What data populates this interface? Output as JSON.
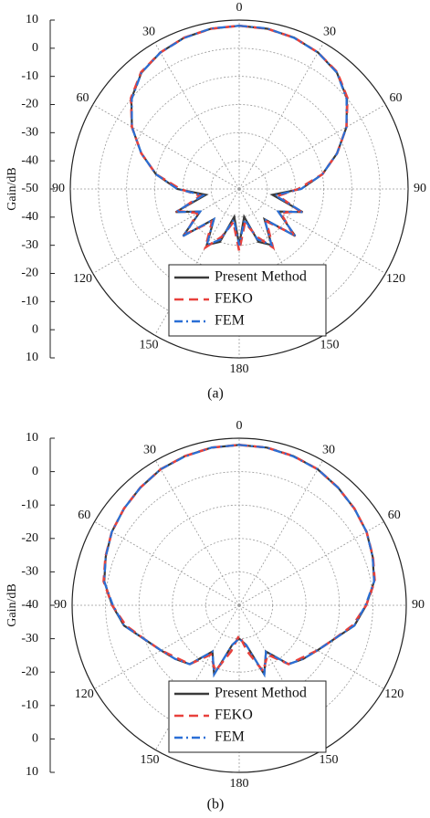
{
  "chart_data": [
    {
      "type": "polar",
      "caption": "(a)",
      "radial_label": "Gain/dB",
      "rlim": [
        -50,
        10
      ],
      "rticks": [
        -50,
        -40,
        -30,
        -20,
        -10,
        0,
        10
      ],
      "angle_ticks": [
        0,
        30,
        60,
        90,
        120,
        150,
        180
      ],
      "grid": true,
      "legend": "lower center",
      "theta": [
        0,
        10,
        20,
        30,
        40,
        50,
        60,
        70,
        80,
        90,
        100,
        110,
        120,
        130,
        140,
        150,
        160,
        170,
        180,
        190,
        200,
        210,
        220,
        230,
        240,
        250,
        260,
        270,
        280,
        290,
        300,
        310,
        320,
        330,
        340,
        350,
        360
      ],
      "series": [
        {
          "name": "Present Method",
          "color": "#3a3a3a",
          "dash": "solid",
          "values": [
            8,
            7.8,
            7.2,
            6,
            4,
            0,
            -6,
            -13,
            -20,
            -28,
            -38,
            -26,
            -34,
            -24,
            -36,
            -27,
            -30,
            -40,
            -30,
            -40,
            -30,
            -27,
            -36,
            -24,
            -34,
            -26,
            -38,
            -28,
            -20,
            -13,
            -6,
            0,
            4,
            6,
            7.2,
            7.8,
            8
          ]
        },
        {
          "name": "FEKO",
          "color": "#e8413c",
          "dash": "dashed",
          "values": [
            8,
            7.8,
            7.2,
            6,
            4.2,
            0.2,
            -6,
            -13,
            -20,
            -29,
            -36,
            -27,
            -33,
            -25,
            -35,
            -26,
            -32,
            -38,
            -28,
            -38,
            -32,
            -26,
            -35,
            -25,
            -33,
            -27,
            -36,
            -29,
            -20,
            -13,
            -6,
            0.2,
            4.2,
            6,
            7.2,
            7.8,
            8
          ]
        },
        {
          "name": "FEM",
          "color": "#2a6fd6",
          "dash": "dashdot",
          "values": [
            8,
            7.9,
            7.1,
            6,
            4,
            -0.2,
            -6,
            -13,
            -20,
            -28,
            -37,
            -26,
            -34,
            -24,
            -36,
            -27,
            -31,
            -39,
            -30,
            -39,
            -31,
            -27,
            -36,
            -24,
            -34,
            -26,
            -37,
            -28,
            -20,
            -13,
            -6,
            -0.2,
            4,
            6,
            7.1,
            7.9,
            8
          ]
        }
      ]
    },
    {
      "type": "polar",
      "caption": "(b)",
      "radial_label": "Gain/dB",
      "rlim": [
        -40,
        10
      ],
      "rticks": [
        -40,
        -30,
        -20,
        -10,
        0,
        10
      ],
      "angle_ticks": [
        0,
        30,
        60,
        90,
        120,
        150,
        180
      ],
      "grid": true,
      "legend": "lower center",
      "theta": [
        0,
        10,
        20,
        30,
        40,
        50,
        60,
        70,
        80,
        90,
        100,
        110,
        120,
        130,
        140,
        150,
        160,
        170,
        180,
        190,
        200,
        210,
        220,
        230,
        240,
        250,
        260,
        270,
        280,
        290,
        300,
        310,
        320,
        330,
        340,
        350,
        360
      ],
      "series": [
        {
          "name": "Present Method",
          "color": "#3a3a3a",
          "dash": "solid",
          "values": [
            8,
            7.9,
            7.5,
            7,
            6,
            5,
            4,
            2.5,
            1,
            -2,
            -5,
            -10,
            -13,
            -15,
            -17,
            -24,
            -18,
            -28,
            -30,
            -28,
            -18,
            -24,
            -17,
            -15,
            -13,
            -10,
            -5,
            -2,
            1,
            2.5,
            4,
            5,
            6,
            7,
            7.5,
            7.9,
            8
          ]
        },
        {
          "name": "FEKO",
          "color": "#e8413c",
          "dash": "dashed",
          "values": [
            8,
            7.9,
            7.5,
            7,
            6,
            5,
            4,
            2.6,
            1.2,
            -2,
            -5.5,
            -10,
            -13,
            -15.5,
            -17,
            -23,
            -19,
            -26,
            -31,
            -26,
            -19,
            -23,
            -17,
            -15.5,
            -13,
            -10,
            -5.5,
            -2,
            1.2,
            2.6,
            4,
            5,
            6,
            7,
            7.5,
            7.9,
            8
          ]
        },
        {
          "name": "FEM",
          "color": "#2a6fd6",
          "dash": "dashdot",
          "values": [
            8,
            7.9,
            7.4,
            7,
            6,
            5,
            4,
            2.5,
            1,
            -2.2,
            -5,
            -10,
            -13,
            -15,
            -17,
            -24,
            -18,
            -28,
            -30,
            -28,
            -18,
            -24,
            -17,
            -15,
            -13,
            -10,
            -5,
            -2.2,
            1,
            2.5,
            4,
            5,
            6,
            7,
            7.4,
            7.9,
            8
          ]
        }
      ]
    }
  ]
}
